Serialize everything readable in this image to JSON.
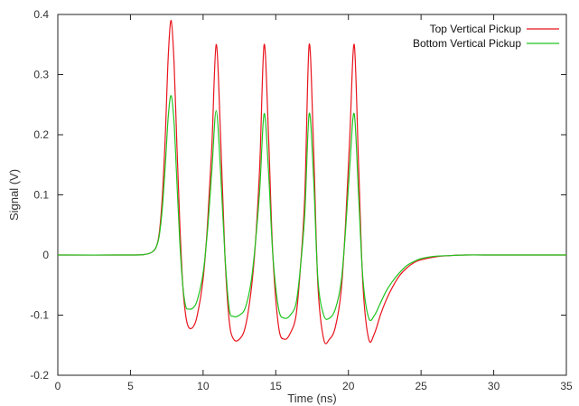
{
  "chart_data": {
    "type": "line",
    "title": "",
    "xlabel": "Time (ns)",
    "ylabel": "Signal (V)",
    "xlim": [
      0,
      35
    ],
    "ylim": [
      -0.2,
      0.4
    ],
    "x_ticks": [
      0,
      5,
      10,
      15,
      20,
      25,
      30,
      35
    ],
    "x_tick_labels": [
      "0",
      "5",
      "10",
      "15",
      "20",
      "25",
      "30",
      "35"
    ],
    "y_ticks": [
      -0.2,
      -0.1,
      0,
      0.1,
      0.2,
      0.3,
      0.4
    ],
    "y_tick_labels": [
      "-0.2",
      "-0.1",
      "0",
      "0.1",
      "0.2",
      "0.3",
      "0.4"
    ],
    "grid": false,
    "legend_position": "top-right",
    "series": [
      {
        "name": "Top Vertical Pickup",
        "color": "#e8141c",
        "x": [
          0,
          5,
          6,
          6.5,
          6.8,
          7.0,
          7.2,
          7.4,
          7.6,
          7.8,
          8.0,
          8.2,
          8.4,
          8.6,
          8.8,
          9.0,
          9.3,
          9.6,
          10.0,
          10.3,
          10.6,
          10.9,
          11.2,
          11.5,
          11.8,
          12.1,
          12.5,
          12.9,
          13.3,
          13.6,
          13.9,
          14.2,
          14.5,
          14.8,
          15.2,
          15.6,
          16.0,
          16.4,
          16.7,
          17.0,
          17.3,
          17.6,
          17.9,
          18.3,
          18.7,
          19.1,
          19.5,
          19.8,
          20.1,
          20.4,
          20.7,
          21.0,
          21.4,
          21.8,
          22.2,
          22.6,
          23.0,
          23.5,
          24.0,
          24.5,
          25.0,
          26.0,
          27.0,
          28.0,
          30.0,
          32.0,
          35.0
        ],
        "y": [
          0,
          0,
          0.001,
          0.005,
          0.015,
          0.04,
          0.1,
          0.2,
          0.33,
          0.39,
          0.32,
          0.18,
          0.05,
          -0.05,
          -0.1,
          -0.12,
          -0.12,
          -0.1,
          -0.04,
          0.05,
          0.18,
          0.35,
          0.2,
          0.0,
          -0.11,
          -0.14,
          -0.14,
          -0.12,
          -0.06,
          0.02,
          0.15,
          0.35,
          0.2,
          0.0,
          -0.12,
          -0.14,
          -0.13,
          -0.1,
          -0.02,
          0.1,
          0.35,
          0.18,
          -0.05,
          -0.14,
          -0.14,
          -0.12,
          -0.06,
          0.05,
          0.2,
          0.35,
          0.15,
          -0.05,
          -0.14,
          -0.13,
          -0.1,
          -0.075,
          -0.055,
          -0.035,
          -0.022,
          -0.013,
          -0.008,
          -0.003,
          -0.001,
          0,
          0,
          0,
          0
        ]
      },
      {
        "name": "Bottom Vertical Pickup",
        "color": "#1fc41f",
        "x": [
          0,
          5,
          6,
          6.5,
          6.8,
          7.0,
          7.2,
          7.4,
          7.6,
          7.8,
          8.0,
          8.2,
          8.4,
          8.6,
          8.8,
          9.0,
          9.3,
          9.6,
          10.0,
          10.3,
          10.6,
          10.9,
          11.2,
          11.5,
          11.8,
          12.1,
          12.5,
          12.9,
          13.3,
          13.6,
          13.9,
          14.2,
          14.5,
          14.8,
          15.2,
          15.6,
          16.0,
          16.4,
          16.7,
          17.0,
          17.3,
          17.6,
          17.9,
          18.3,
          18.7,
          19.1,
          19.5,
          19.8,
          20.1,
          20.4,
          20.7,
          21.0,
          21.4,
          21.8,
          22.2,
          22.6,
          23.0,
          23.5,
          24.0,
          24.5,
          25.0,
          26.0,
          27.0,
          28.0,
          30.0,
          32.0,
          35.0
        ],
        "y": [
          0,
          0,
          0.001,
          0.005,
          0.015,
          0.035,
          0.08,
          0.15,
          0.23,
          0.265,
          0.22,
          0.12,
          0.02,
          -0.05,
          -0.085,
          -0.09,
          -0.088,
          -0.075,
          -0.03,
          0.04,
          0.14,
          0.24,
          0.14,
          0.0,
          -0.09,
          -0.102,
          -0.1,
          -0.088,
          -0.045,
          0.02,
          0.11,
          0.235,
          0.14,
          0.0,
          -0.09,
          -0.105,
          -0.1,
          -0.08,
          -0.02,
          0.07,
          0.235,
          0.13,
          -0.04,
          -0.1,
          -0.105,
          -0.09,
          -0.045,
          0.04,
          0.15,
          0.235,
          0.1,
          -0.04,
          -0.105,
          -0.1,
          -0.08,
          -0.06,
          -0.045,
          -0.03,
          -0.018,
          -0.011,
          -0.006,
          -0.002,
          -0.001,
          0,
          0,
          0,
          0
        ]
      }
    ]
  }
}
